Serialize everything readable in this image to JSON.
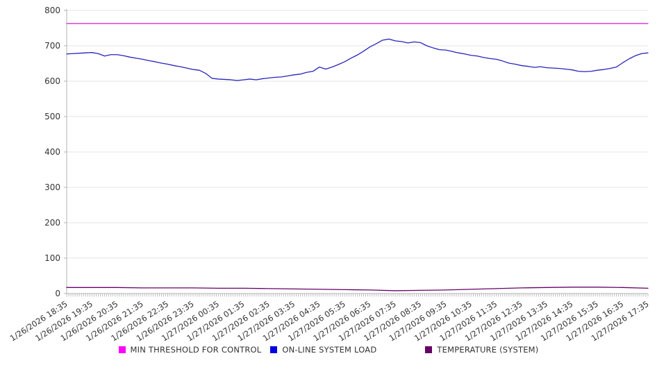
{
  "chart_data": {
    "type": "line",
    "title": "",
    "xlabel": "",
    "ylabel": "",
    "ylim": [
      0,
      800
    ],
    "y_ticks": [
      0,
      100,
      200,
      300,
      400,
      500,
      600,
      700,
      800
    ],
    "grid": true,
    "legend_position": "bottom",
    "x_labels": [
      "1/26/2026 18:35",
      "1/26/2026 19:35",
      "1/26/2026 20:35",
      "1/26/2026 21:35",
      "1/26/2026 22:35",
      "1/26/2026 23:35",
      "1/27/2026 00:35",
      "1/27/2026 01:35",
      "1/27/2026 02:35",
      "1/27/2026 03:35",
      "1/27/2026 04:35",
      "1/27/2026 05:35",
      "1/27/2026 06:35",
      "1/27/2026 07:35",
      "1/27/2026 08:35",
      "1/27/2026 09:35",
      "1/27/2026 10:35",
      "1/27/2026 11:35",
      "1/27/2026 12:35",
      "1/27/2026 13:35",
      "1/27/2026 14:35",
      "1/27/2026 15:35",
      "1/27/2026 16:35",
      "1/27/2026 17:35"
    ],
    "series": [
      {
        "name": "MIN THRESHOLD FOR CONTROL",
        "swatch_color": "#ff00ff",
        "line_color": "#d41ad4",
        "points_per_hour": 1,
        "constant": 763,
        "values": [
          763,
          763,
          763,
          763,
          763,
          763,
          763,
          763,
          763,
          763,
          763,
          763,
          763,
          763,
          763,
          763,
          763,
          763,
          763,
          763,
          763,
          763,
          763,
          763
        ]
      },
      {
        "name": "ON-LINE SYSTEM LOAD",
        "swatch_color": "#0000e0",
        "line_color": "#2424bb",
        "points_per_hour": 4,
        "values": [
          677,
          678,
          679,
          680,
          681,
          678,
          671,
          675,
          675,
          672,
          668,
          665,
          662,
          658,
          655,
          651,
          648,
          644,
          641,
          637,
          633,
          631,
          622,
          608,
          606,
          605,
          604,
          602,
          604,
          606,
          604,
          607,
          609,
          611,
          612,
          615,
          618,
          620,
          625,
          628,
          640,
          634,
          640,
          647,
          655,
          665,
          674,
          685,
          697,
          706,
          716,
          719,
          714,
          712,
          708,
          711,
          709,
          700,
          694,
          689,
          688,
          684,
          680,
          677,
          673,
          671,
          667,
          664,
          662,
          657,
          651,
          648,
          644,
          642,
          639,
          641,
          638,
          637,
          636,
          634,
          632,
          628,
          627,
          628,
          631,
          633,
          636,
          640,
          652,
          663,
          672,
          678,
          680
        ]
      },
      {
        "name": "TEMPERATURE (SYSTEM)",
        "swatch_color": "#660066",
        "line_color": "#660066",
        "points_per_hour": 1,
        "values": [
          17,
          17,
          17,
          16,
          16,
          16,
          15,
          15,
          14,
          13,
          12,
          11,
          10,
          8,
          9,
          10,
          12,
          14,
          16,
          17,
          18,
          18,
          17,
          15
        ]
      }
    ],
    "colors": {
      "grid_line": "#e6e6e6",
      "axis_line": "#b3b3b3",
      "tick_mark": "#b3b3b3",
      "tick_text": "#333333",
      "background": "#ffffff"
    }
  }
}
